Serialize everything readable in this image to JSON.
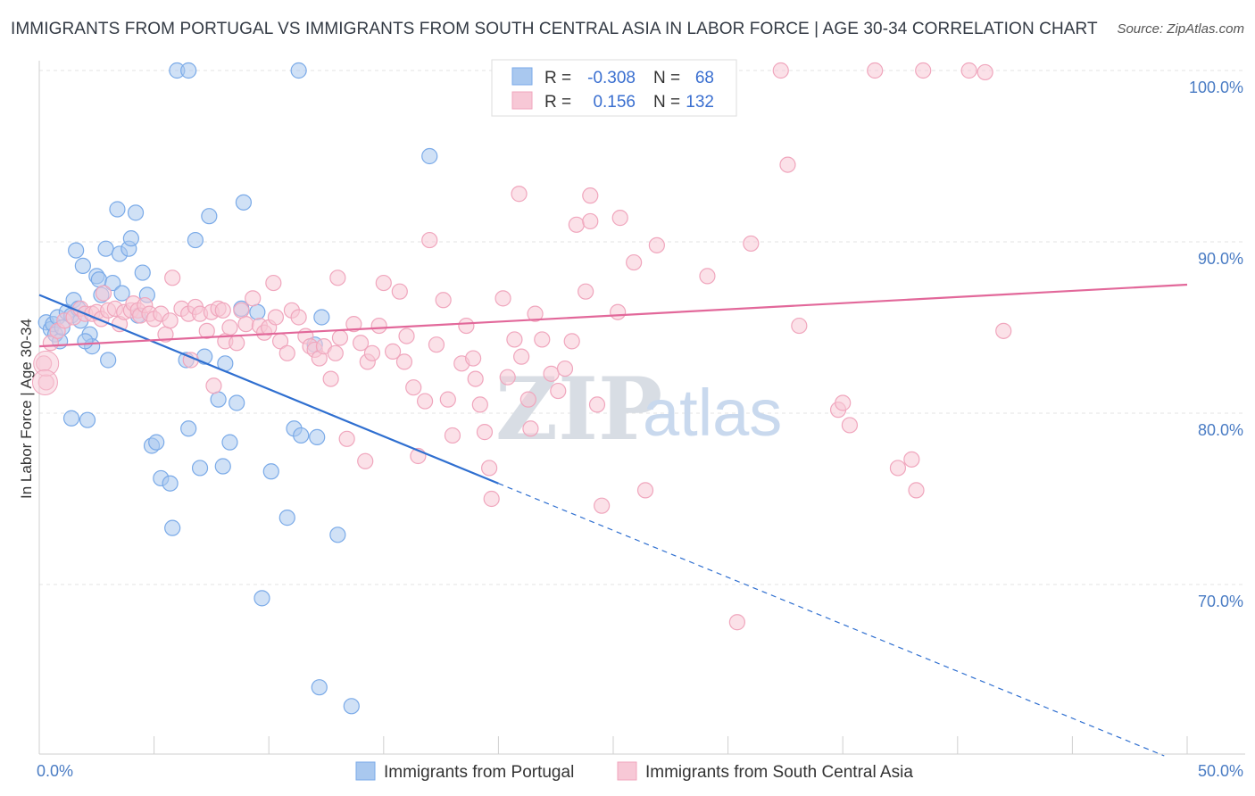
{
  "title": "IMMIGRANTS FROM PORTUGAL VS IMMIGRANTS FROM SOUTH CENTRAL ASIA IN LABOR FORCE | AGE 30-34 CORRELATION CHART",
  "source": "Source: ZipAtlas.com",
  "watermark": {
    "zip": "ZIP",
    "atlas": "atlas"
  },
  "chart_data": {
    "type": "scatter",
    "ylabel": "In Labor Force | Age 30-34",
    "xlim": [
      0,
      50
    ],
    "ylim": [
      61.5,
      102
    ],
    "x_tick_labels": [
      {
        "value": 0,
        "label": "0.0%"
      },
      {
        "value": 50,
        "label": "50.0%"
      }
    ],
    "x_minor_ticks": [
      0,
      5,
      10,
      15,
      20,
      25,
      30,
      35,
      40,
      45,
      50
    ],
    "y_ticks": [
      {
        "value": 100,
        "label": "100.0%"
      },
      {
        "value": 90,
        "label": "90.0%"
      },
      {
        "value": 80,
        "label": "80.0%"
      },
      {
        "value": 70,
        "label": "70.0%"
      }
    ],
    "grid": true,
    "legend": {
      "position": "top-center",
      "rows": [
        {
          "r_label": "R =",
          "r_value": "-0.308",
          "n_label": "N =",
          "n_value": "68"
        },
        {
          "r_label": "R =",
          "r_value": "0.156",
          "n_label": "N =",
          "n_value": "132"
        }
      ]
    },
    "series": [
      {
        "name": "Immigrants from Portugal",
        "color": "#7aaae8",
        "fill": "#a9c8ef",
        "trend_color": "#2f6fd0",
        "trend": {
          "x0": 0,
          "y0": 86.9,
          "x1": 20,
          "y1": 75.9,
          "dash_x1": 49,
          "dash_y1": 60.0
        },
        "points": [
          [
            0.3,
            85.3
          ],
          [
            0.5,
            84.9
          ],
          [
            0.6,
            85.2
          ],
          [
            0.7,
            84.6
          ],
          [
            0.8,
            85.6
          ],
          [
            0.9,
            84.2
          ],
          [
            1.0,
            85.0
          ],
          [
            1.2,
            85.9
          ],
          [
            1.4,
            85.7
          ],
          [
            1.5,
            86.6
          ],
          [
            1.6,
            89.5
          ],
          [
            1.7,
            86.1
          ],
          [
            1.8,
            85.4
          ],
          [
            1.9,
            88.6
          ],
          [
            2.2,
            84.6
          ],
          [
            2.3,
            83.9
          ],
          [
            2.5,
            88.0
          ],
          [
            2.6,
            87.8
          ],
          [
            2.7,
            86.9
          ],
          [
            2.9,
            89.6
          ],
          [
            3.0,
            83.1
          ],
          [
            3.2,
            87.6
          ],
          [
            3.4,
            91.9
          ],
          [
            3.5,
            89.3
          ],
          [
            3.6,
            87.0
          ],
          [
            3.9,
            89.6
          ],
          [
            4.0,
            90.2
          ],
          [
            4.2,
            91.7
          ],
          [
            4.3,
            85.7
          ],
          [
            4.5,
            88.2
          ],
          [
            4.7,
            86.9
          ],
          [
            4.9,
            78.1
          ],
          [
            5.1,
            78.3
          ],
          [
            5.3,
            76.2
          ],
          [
            5.7,
            75.9
          ],
          [
            5.8,
            73.3
          ],
          [
            6.0,
            100.0
          ],
          [
            6.4,
            83.1
          ],
          [
            6.5,
            79.1
          ],
          [
            6.5,
            100.0
          ],
          [
            6.8,
            90.1
          ],
          [
            7.0,
            76.8
          ],
          [
            7.2,
            83.3
          ],
          [
            7.4,
            91.5
          ],
          [
            7.8,
            80.8
          ],
          [
            8.0,
            76.9
          ],
          [
            8.1,
            82.9
          ],
          [
            8.3,
            78.3
          ],
          [
            8.6,
            80.6
          ],
          [
            8.8,
            86.1
          ],
          [
            8.9,
            92.3
          ],
          [
            9.5,
            85.9
          ],
          [
            9.7,
            69.2
          ],
          [
            10.1,
            76.6
          ],
          [
            10.8,
            73.9
          ],
          [
            11.1,
            79.1
          ],
          [
            11.3,
            100.0
          ],
          [
            11.4,
            78.7
          ],
          [
            12.1,
            78.6
          ],
          [
            12.2,
            64.0
          ],
          [
            12.0,
            84.0
          ],
          [
            12.3,
            85.6
          ],
          [
            13.0,
            72.9
          ],
          [
            13.6,
            62.9
          ],
          [
            17.0,
            95.0
          ],
          [
            1.4,
            79.7
          ],
          [
            2.1,
            79.6
          ],
          [
            2.0,
            84.2
          ]
        ]
      },
      {
        "name": "Immigrants from South Central Asia",
        "color": "#f0a6bd",
        "fill": "#f7c8d6",
        "trend_color": "#e2689a",
        "trend": {
          "x0": 0,
          "y0": 83.9,
          "x1": 50,
          "y1": 87.5
        },
        "points": [
          [
            0.2,
            82.9
          ],
          [
            0.3,
            81.8
          ],
          [
            0.5,
            84.1
          ],
          [
            0.8,
            84.8
          ],
          [
            1.1,
            85.4
          ],
          [
            1.5,
            85.6
          ],
          [
            1.8,
            86.1
          ],
          [
            2.0,
            85.8
          ],
          [
            2.3,
            85.8
          ],
          [
            2.5,
            85.9
          ],
          [
            2.7,
            85.5
          ],
          [
            2.8,
            87.0
          ],
          [
            3.0,
            86.0
          ],
          [
            3.3,
            86.1
          ],
          [
            3.5,
            85.2
          ],
          [
            3.7,
            85.9
          ],
          [
            4.0,
            86.0
          ],
          [
            4.1,
            86.4
          ],
          [
            4.3,
            86.0
          ],
          [
            4.4,
            85.7
          ],
          [
            4.6,
            86.3
          ],
          [
            4.8,
            85.8
          ],
          [
            5.0,
            85.5
          ],
          [
            5.3,
            85.8
          ],
          [
            5.5,
            84.6
          ],
          [
            5.7,
            85.4
          ],
          [
            5.8,
            87.9
          ],
          [
            6.2,
            86.1
          ],
          [
            6.5,
            85.8
          ],
          [
            6.6,
            83.1
          ],
          [
            6.8,
            86.2
          ],
          [
            7.0,
            85.8
          ],
          [
            7.3,
            84.8
          ],
          [
            7.5,
            85.9
          ],
          [
            7.6,
            81.6
          ],
          [
            7.8,
            86.1
          ],
          [
            8.0,
            86.0
          ],
          [
            8.1,
            84.2
          ],
          [
            8.3,
            85.0
          ],
          [
            8.6,
            84.1
          ],
          [
            8.8,
            86.0
          ],
          [
            9.0,
            85.2
          ],
          [
            9.3,
            86.7
          ],
          [
            9.6,
            85.1
          ],
          [
            9.8,
            84.7
          ],
          [
            10.0,
            85.0
          ],
          [
            10.2,
            87.6
          ],
          [
            10.3,
            85.6
          ],
          [
            10.5,
            84.2
          ],
          [
            10.8,
            83.5
          ],
          [
            11.0,
            86.0
          ],
          [
            11.3,
            85.6
          ],
          [
            11.6,
            84.5
          ],
          [
            11.8,
            83.9
          ],
          [
            12.0,
            83.7
          ],
          [
            12.2,
            83.2
          ],
          [
            12.4,
            83.9
          ],
          [
            12.7,
            82.0
          ],
          [
            12.9,
            83.5
          ],
          [
            13.0,
            87.9
          ],
          [
            13.1,
            84.4
          ],
          [
            13.4,
            78.5
          ],
          [
            13.7,
            85.2
          ],
          [
            14.0,
            84.1
          ],
          [
            14.2,
            77.2
          ],
          [
            14.3,
            83.0
          ],
          [
            14.5,
            83.5
          ],
          [
            14.8,
            85.1
          ],
          [
            15.0,
            87.6
          ],
          [
            15.4,
            83.6
          ],
          [
            15.7,
            87.1
          ],
          [
            15.9,
            83.0
          ],
          [
            16.0,
            84.5
          ],
          [
            16.3,
            81.5
          ],
          [
            16.5,
            77.5
          ],
          [
            16.8,
            80.7
          ],
          [
            17.0,
            90.1
          ],
          [
            17.3,
            84.0
          ],
          [
            17.6,
            86.6
          ],
          [
            17.8,
            80.8
          ],
          [
            18.0,
            78.7
          ],
          [
            18.4,
            82.9
          ],
          [
            18.6,
            85.1
          ],
          [
            18.9,
            83.2
          ],
          [
            19.0,
            82.0
          ],
          [
            19.2,
            80.5
          ],
          [
            19.4,
            78.9
          ],
          [
            19.6,
            76.8
          ],
          [
            19.7,
            75.0
          ],
          [
            20.2,
            86.7
          ],
          [
            20.4,
            82.1
          ],
          [
            20.7,
            84.3
          ],
          [
            20.9,
            92.8
          ],
          [
            21.3,
            80.8
          ],
          [
            21.4,
            79.1
          ],
          [
            21.6,
            85.8
          ],
          [
            21.9,
            84.3
          ],
          [
            22.3,
            82.3
          ],
          [
            22.6,
            81.3
          ],
          [
            22.9,
            82.6
          ],
          [
            23.2,
            84.2
          ],
          [
            23.4,
            91.0
          ],
          [
            23.8,
            87.1
          ],
          [
            24.0,
            92.7
          ],
          [
            24.3,
            80.5
          ],
          [
            24.5,
            74.6
          ],
          [
            25.2,
            85.9
          ],
          [
            25.3,
            91.4
          ],
          [
            25.9,
            88.8
          ],
          [
            26.4,
            75.5
          ],
          [
            26.9,
            89.8
          ],
          [
            27.8,
            100.0
          ],
          [
            28.6,
            99.9
          ],
          [
            29.1,
            88.0
          ],
          [
            30.4,
            67.8
          ],
          [
            32.3,
            100.0
          ],
          [
            32.6,
            94.5
          ],
          [
            33.1,
            85.1
          ],
          [
            34.8,
            80.2
          ],
          [
            35.0,
            80.6
          ],
          [
            35.3,
            79.3
          ],
          [
            36.4,
            100.0
          ],
          [
            37.4,
            76.8
          ],
          [
            38.0,
            77.3
          ],
          [
            38.2,
            75.5
          ],
          [
            38.5,
            100.0
          ],
          [
            40.5,
            100.0
          ],
          [
            41.2,
            99.9
          ],
          [
            42.0,
            84.8
          ],
          [
            31.0,
            89.9
          ],
          [
            24.0,
            91.2
          ],
          [
            21.0,
            83.3
          ]
        ]
      }
    ]
  }
}
